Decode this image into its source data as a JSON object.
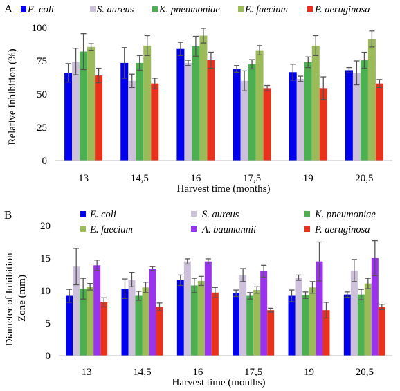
{
  "chart_data": [
    {
      "panel_label": "A",
      "type": "bar",
      "xlabel": "Harvest time (months)",
      "ylabel": "Relative Inhibition (%)",
      "ylim": [
        0,
        100
      ],
      "yticks": [
        0,
        25,
        50,
        75,
        100
      ],
      "grid": false,
      "legend_position": "top",
      "categories": [
        "13",
        "14,5",
        "16",
        "17,5",
        "19",
        "20,5"
      ],
      "series": [
        {
          "name": "E. coli",
          "color": "#0000ee",
          "values": [
            66,
            73.5,
            84,
            69,
            66.5,
            68
          ],
          "errors": [
            7,
            11.5,
            5,
            2.5,
            6,
            2
          ]
        },
        {
          "name": "S. aureus",
          "color": "#ccc0da",
          "values": [
            74.5,
            60,
            73.5,
            60,
            61.5,
            66
          ],
          "errors": [
            10,
            5,
            2,
            7.5,
            2,
            9
          ]
        },
        {
          "name": "K. pneumoniae",
          "color": "#4caf50",
          "values": [
            82,
            73.5,
            86,
            72.5,
            74,
            75.5
          ],
          "errors": [
            13.5,
            5.5,
            7.5,
            3.5,
            4,
            6
          ]
        },
        {
          "name": "E. faecium",
          "color": "#9bbb59",
          "values": [
            85.5,
            86.5,
            94,
            83,
            86.5,
            91.5
          ],
          "errors": [
            2.5,
            7.5,
            5.5,
            3.5,
            7.5,
            6
          ]
        },
        {
          "name": "P. aeruginosa",
          "color": "#e8321c",
          "values": [
            64,
            58,
            75.5,
            54.5,
            54.5,
            58
          ],
          "errors": [
            5.5,
            4,
            6,
            2,
            8.5,
            3
          ]
        }
      ]
    },
    {
      "panel_label": "B",
      "type": "bar",
      "xlabel": "Harvest time (months)",
      "ylabel": "Diameter of Inhibition Zone (mm)",
      "ylim": [
        0,
        20
      ],
      "yticks": [
        0,
        5,
        10,
        15,
        20
      ],
      "grid": false,
      "legend_position": "top",
      "categories": [
        "13",
        "14,5",
        "16",
        "17,5",
        "19",
        "20,5"
      ],
      "series": [
        {
          "name": "E. coli",
          "color": "#0000ee",
          "values": [
            9.2,
            10.3,
            11.6,
            9.6,
            9.2,
            9.4
          ],
          "errors": [
            1.0,
            1.5,
            0.8,
            0.5,
            0.9,
            0.4
          ]
        },
        {
          "name": "S. aureus",
          "color": "#ccc0da",
          "values": [
            13.7,
            11.7,
            14.5,
            12.4,
            12.0,
            13.1
          ],
          "errors": [
            2.8,
            1.1,
            0.4,
            1.0,
            0.4,
            1.7
          ]
        },
        {
          "name": "K. pneumoniae",
          "color": "#4caf50",
          "values": [
            10.3,
            9.2,
            10.8,
            9.2,
            9.3,
            9.4
          ],
          "errors": [
            1.6,
            0.7,
            1.1,
            0.5,
            0.5,
            0.8
          ]
        },
        {
          "name": "E. faecium",
          "color": "#9bbb59",
          "values": [
            10.6,
            10.5,
            11.5,
            10.1,
            10.5,
            11.1
          ],
          "errors": [
            0.5,
            0.8,
            0.7,
            0.5,
            0.9,
            0.8
          ]
        },
        {
          "name": "A. baumannii",
          "color": "#9933ee",
          "values": [
            13.9,
            13.4,
            14.5,
            13.0,
            14.5,
            15.0
          ],
          "errors": [
            0.8,
            0.3,
            0.4,
            0.9,
            3.0,
            2.7
          ]
        },
        {
          "name": "P. aeruginosa",
          "color": "#e8321c",
          "values": [
            8.2,
            7.5,
            9.7,
            7.0,
            7.0,
            7.5
          ],
          "errors": [
            0.7,
            0.6,
            0.8,
            0.3,
            1.2,
            0.4
          ]
        }
      ]
    }
  ]
}
